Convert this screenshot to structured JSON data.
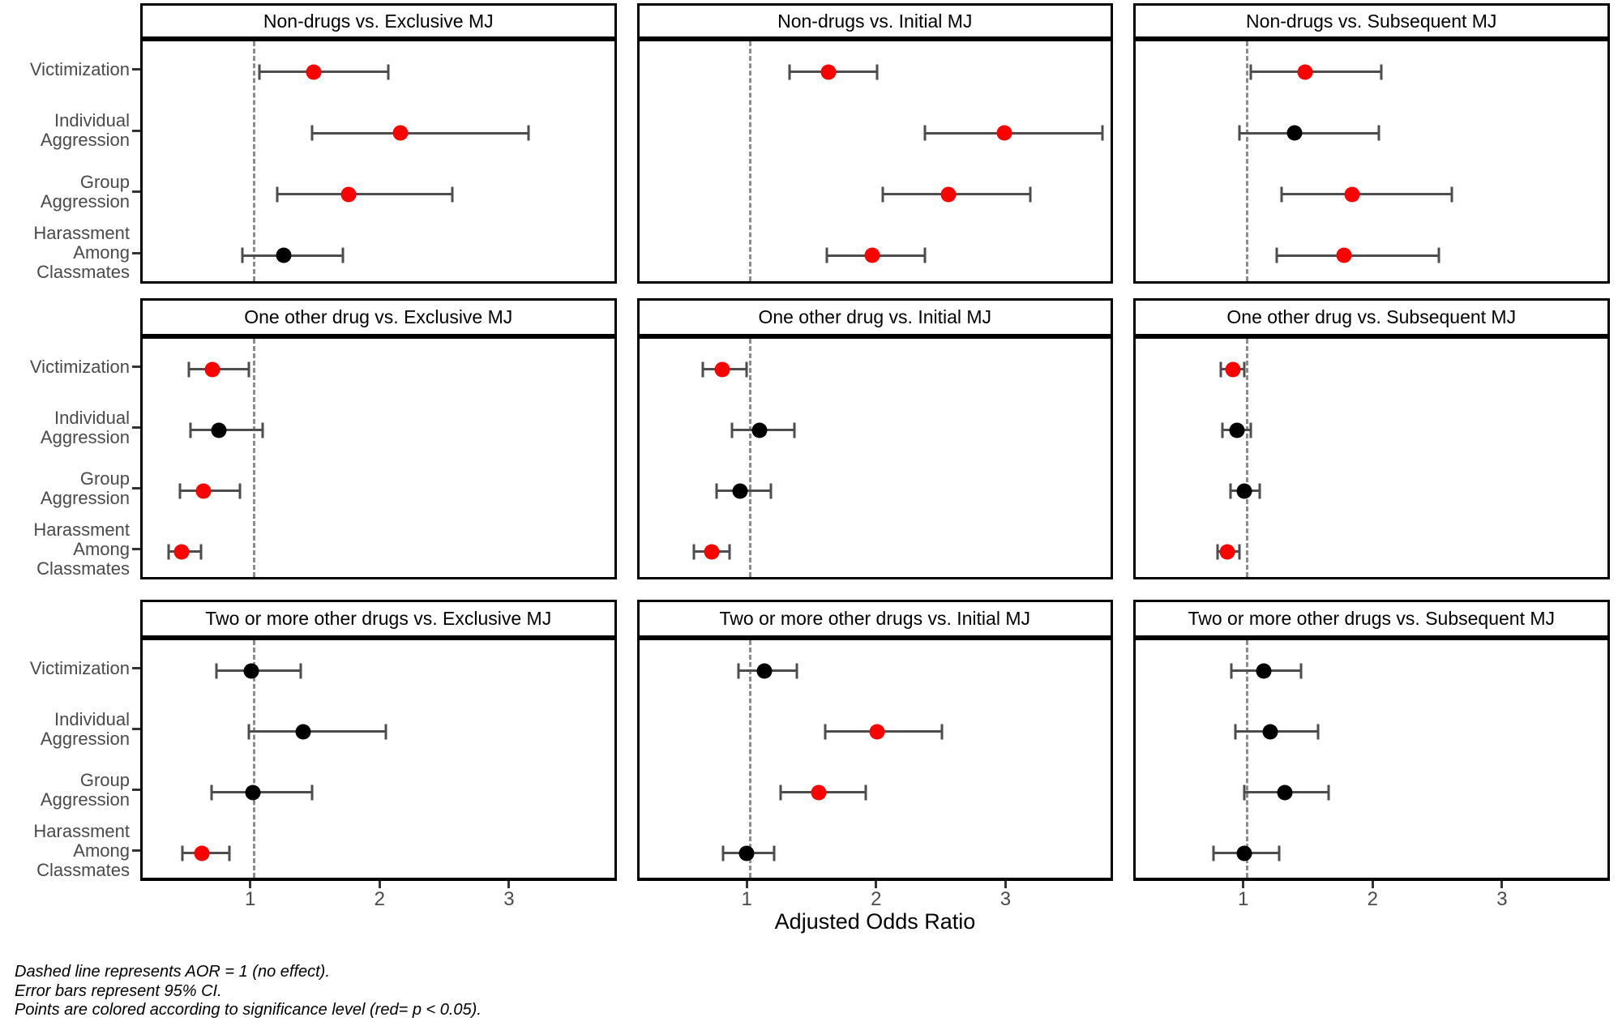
{
  "figure": {
    "xlabel": "Adjusted Odds Ratio",
    "notes": [
      "Dashed line represents AOR = 1 (no effect).",
      "Error bars represent 95% CI.",
      "Points are colored according to significance level (red= p < 0.05)."
    ]
  },
  "chart_data": {
    "type": "scatter",
    "subtype": "forest-plot-with-error-bars",
    "xlabel": "Adjusted Odds Ratio",
    "x_ticks": [
      1,
      2,
      3
    ],
    "xlim": [
      0.15,
      3.83
    ],
    "reference_line": 1,
    "grid": false,
    "legend_note": "red = p < 0.05; black = not significant",
    "colors": {
      "significant": "#FF0000",
      "not_significant": "#000000",
      "error_bar": "#4D4D4D",
      "reference_line": "#8C8C8C"
    },
    "categories": [
      "Victimization",
      "Individual\nAggression",
      "Group\nAggression",
      "Harassment\nAmong\nClassmates"
    ],
    "facet_grid": {
      "row_groups": [
        "Non-drugs",
        "One other drug",
        "Two or more other drugs"
      ],
      "col_groups": [
        "Exclusive MJ",
        "Initial MJ",
        "Subsequent MJ"
      ]
    },
    "facets": [
      {
        "title": "Non-drugs vs. Exclusive MJ",
        "points": [
          {
            "category": "Victimization",
            "aor": 1.47,
            "ci_low": 1.05,
            "ci_high": 2.05,
            "significant": true
          },
          {
            "category": "Individual Aggression",
            "aor": 2.14,
            "ci_low": 1.46,
            "ci_high": 3.13,
            "significant": true
          },
          {
            "category": "Group Aggression",
            "aor": 1.74,
            "ci_low": 1.19,
            "ci_high": 2.54,
            "significant": true
          },
          {
            "category": "Harassment Among Classmates",
            "aor": 1.24,
            "ci_low": 0.92,
            "ci_high": 1.7,
            "significant": false
          }
        ]
      },
      {
        "title": "Non-drugs vs. Initial MJ",
        "points": [
          {
            "category": "Victimization",
            "aor": 1.61,
            "ci_low": 1.31,
            "ci_high": 1.99,
            "significant": true
          },
          {
            "category": "Individual Aggression",
            "aor": 2.97,
            "ci_low": 2.36,
            "ci_high": 3.73,
            "significant": true
          },
          {
            "category": "Group Aggression",
            "aor": 2.54,
            "ci_low": 2.03,
            "ci_high": 3.17,
            "significant": true
          },
          {
            "category": "Harassment Among Classmates",
            "aor": 1.95,
            "ci_low": 1.6,
            "ci_high": 2.36,
            "significant": true
          }
        ]
      },
      {
        "title": "Non-drugs vs. Subsequent MJ",
        "points": [
          {
            "category": "Victimization",
            "aor": 1.46,
            "ci_low": 1.04,
            "ci_high": 2.05,
            "significant": true
          },
          {
            "category": "Individual Aggression",
            "aor": 1.38,
            "ci_low": 0.95,
            "ci_high": 2.03,
            "significant": false
          },
          {
            "category": "Group Aggression",
            "aor": 1.82,
            "ci_low": 1.28,
            "ci_high": 2.59,
            "significant": true
          },
          {
            "category": "Harassment Among Classmates",
            "aor": 1.76,
            "ci_low": 1.24,
            "ci_high": 2.49,
            "significant": true
          }
        ]
      },
      {
        "title": "One other drug vs. Exclusive MJ",
        "points": [
          {
            "category": "Victimization",
            "aor": 0.69,
            "ci_low": 0.51,
            "ci_high": 0.97,
            "significant": true
          },
          {
            "category": "Individual Aggression",
            "aor": 0.74,
            "ci_low": 0.52,
            "ci_high": 1.08,
            "significant": false
          },
          {
            "category": "Group Aggression",
            "aor": 0.62,
            "ci_low": 0.44,
            "ci_high": 0.9,
            "significant": true
          },
          {
            "category": "Harassment Among Classmates",
            "aor": 0.45,
            "ci_low": 0.35,
            "ci_high": 0.6,
            "significant": true
          }
        ]
      },
      {
        "title": "One other drug vs. Initial MJ",
        "points": [
          {
            "category": "Victimization",
            "aor": 0.79,
            "ci_low": 0.64,
            "ci_high": 0.98,
            "significant": true
          },
          {
            "category": "Individual Aggression",
            "aor": 1.08,
            "ci_low": 0.87,
            "ci_high": 1.35,
            "significant": false
          },
          {
            "category": "Group Aggression",
            "aor": 0.93,
            "ci_low": 0.75,
            "ci_high": 1.17,
            "significant": false
          },
          {
            "category": "Harassment Among Classmates",
            "aor": 0.71,
            "ci_low": 0.57,
            "ci_high": 0.85,
            "significant": true
          }
        ]
      },
      {
        "title": "One other drug vs. Subsequent MJ",
        "points": [
          {
            "category": "Victimization",
            "aor": 0.9,
            "ci_low": 0.81,
            "ci_high": 0.99,
            "significant": true
          },
          {
            "category": "Individual Aggression",
            "aor": 0.93,
            "ci_low": 0.82,
            "ci_high": 1.04,
            "significant": false
          },
          {
            "category": "Group Aggression",
            "aor": 0.99,
            "ci_low": 0.88,
            "ci_high": 1.11,
            "significant": false
          },
          {
            "category": "Harassment Among Classmates",
            "aor": 0.86,
            "ci_low": 0.78,
            "ci_high": 0.95,
            "significant": true
          }
        ]
      },
      {
        "title": "Two or more other drugs vs. Exclusive MJ",
        "points": [
          {
            "category": "Victimization",
            "aor": 0.99,
            "ci_low": 0.72,
            "ci_high": 1.37,
            "significant": false
          },
          {
            "category": "Individual Aggression",
            "aor": 1.39,
            "ci_low": 0.97,
            "ci_high": 2.03,
            "significant": false
          },
          {
            "category": "Group Aggression",
            "aor": 1.0,
            "ci_low": 0.68,
            "ci_high": 1.46,
            "significant": false
          },
          {
            "category": "Harassment Among Classmates",
            "aor": 0.61,
            "ci_low": 0.46,
            "ci_high": 0.82,
            "significant": true
          }
        ]
      },
      {
        "title": "Two or more other drugs vs. Initial MJ",
        "points": [
          {
            "category": "Victimization",
            "aor": 1.12,
            "ci_low": 0.92,
            "ci_high": 1.37,
            "significant": false
          },
          {
            "category": "Individual Aggression",
            "aor": 1.99,
            "ci_low": 1.59,
            "ci_high": 2.49,
            "significant": true
          },
          {
            "category": "Group Aggression",
            "aor": 1.54,
            "ci_low": 1.24,
            "ci_high": 1.9,
            "significant": true
          },
          {
            "category": "Harassment Among Classmates",
            "aor": 0.98,
            "ci_low": 0.8,
            "ci_high": 1.19,
            "significant": false
          }
        ]
      },
      {
        "title": "Two or more other drugs vs. Subsequent MJ",
        "points": [
          {
            "category": "Victimization",
            "aor": 1.14,
            "ci_low": 0.89,
            "ci_high": 1.43,
            "significant": false
          },
          {
            "category": "Individual Aggression",
            "aor": 1.19,
            "ci_low": 0.92,
            "ci_high": 1.56,
            "significant": false
          },
          {
            "category": "Group Aggression",
            "aor": 1.3,
            "ci_low": 0.99,
            "ci_high": 1.64,
            "significant": false
          },
          {
            "category": "Harassment Among Classmates",
            "aor": 0.99,
            "ci_low": 0.75,
            "ci_high": 1.26,
            "significant": false
          }
        ]
      }
    ]
  }
}
